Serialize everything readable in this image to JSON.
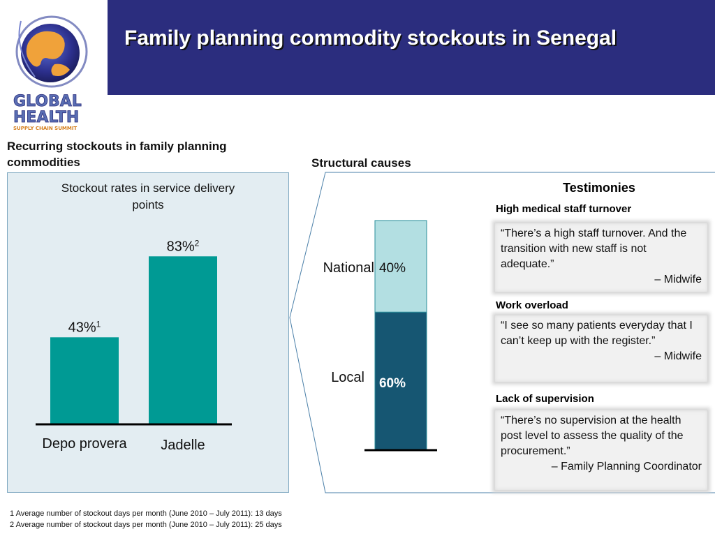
{
  "logo": {
    "name": "global-health-logo",
    "text_line1": "GLOBAL",
    "text_line2": "HEALTH",
    "text_line3": "SUPPLY CHAIN SUMMIT"
  },
  "header": {
    "title": "Family planning commodity stockouts in Senegal",
    "band_color": "#2b2d7e"
  },
  "left": {
    "heading": "Recurring stockouts in family planning commodities"
  },
  "right": {
    "heading": "Structural causes",
    "testimonies_title": "Testimonies",
    "testimonies": [
      {
        "heading": "High medical staff turnover",
        "quote": "“There’s a high staff turnover. And the transition with new staff  is not adequate.”",
        "attribution": "– Midwife"
      },
      {
        "heading": "Work overload",
        "quote": "“I see so many patients everyday that I can’t keep up with the register.”",
        "attribution": "– Midwife"
      },
      {
        "heading": "Lack of supervision",
        "quote": "“There’s no supervision at the health post level to assess the quality of the procurement.”",
        "attribution": "– Family Planning Coordinator"
      }
    ]
  },
  "footnotes": [
    "1 Average number of stockout days per month (June 2010 – July 2011): 13 days",
    "2 Average number of stockout days per month (June 2010 – July 2011): 25 days"
  ],
  "chart_data": [
    {
      "type": "bar",
      "title": "Stockout rates in service delivery points",
      "categories": [
        "Depo provera",
        "Jadelle"
      ],
      "values": [
        43,
        83
      ],
      "value_labels": [
        "43%",
        "83%"
      ],
      "superscripts": [
        "1",
        "2"
      ],
      "unit": "%",
      "ylim": [
        0,
        100
      ],
      "grid": false,
      "color": "#009a94",
      "panel_color": "#e3edf2"
    },
    {
      "type": "bar",
      "stacked": true,
      "categories": [
        ""
      ],
      "series": [
        {
          "name": "Local",
          "values": [
            60
          ],
          "label": "60%",
          "color": "#165672"
        },
        {
          "name": "National",
          "values": [
            40
          ],
          "label": "40%",
          "color": "#b3dfe2"
        }
      ],
      "ylim": [
        0,
        100
      ],
      "grid": false
    }
  ]
}
